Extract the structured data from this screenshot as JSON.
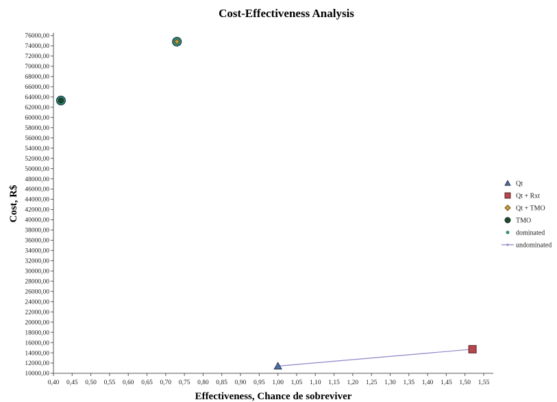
{
  "chart_data": {
    "type": "scatter",
    "title": "Cost-Effectiveness Analysis",
    "xlabel": "Effectiveness, Chance de sobreviver",
    "ylabel": "Cost, R$",
    "xlim": [
      0.4,
      1.55
    ],
    "ylim": [
      10000,
      76000
    ],
    "x_ticks": [
      "0,40",
      "0,45",
      "0,50",
      "0,55",
      "0,60",
      "0,65",
      "0,70",
      "0,75",
      "0,80",
      "0,85",
      "0,90",
      "0,95",
      "1,00",
      "1,05",
      "1,10",
      "1,15",
      "1,20",
      "1,25",
      "1,30",
      "1,35",
      "1,40",
      "1,45",
      "1,50",
      "1,55"
    ],
    "y_ticks": [
      "10000,00",
      "12000,00",
      "14000,00",
      "16000,00",
      "18000,00",
      "20000,00",
      "22000,00",
      "24000,00",
      "26000,00",
      "28000,00",
      "30000,00",
      "32000,00",
      "34000,00",
      "36000,00",
      "38000,00",
      "40000,00",
      "42000,00",
      "44000,00",
      "46000,00",
      "48000,00",
      "50000,00",
      "52000,00",
      "54000,00",
      "56000,00",
      "58000,00",
      "60000,00",
      "62000,00",
      "64000,00",
      "66000,00",
      "68000,00",
      "70000,00",
      "72000,00",
      "74000,00",
      "76000,00"
    ],
    "series": [
      {
        "name": "Qt",
        "marker": "triangle",
        "color": "#4a6fa5",
        "points": [
          {
            "x": 1.0,
            "y": 11400
          }
        ]
      },
      {
        "name": "Qt + Rxt",
        "marker": "square",
        "color": "#b5484f",
        "points": [
          {
            "x": 1.52,
            "y": 14700
          }
        ]
      },
      {
        "name": "Qt + TMO",
        "marker": "diamond",
        "color": "#c8a040",
        "points": [
          {
            "x": 0.73,
            "y": 74800
          }
        ]
      },
      {
        "name": "TMO",
        "marker": "circle",
        "color": "#1e4a30",
        "points": [
          {
            "x": 0.42,
            "y": 63300
          }
        ]
      },
      {
        "name": "dominated",
        "marker": "dot",
        "color": "#2e8b7a",
        "points": [
          {
            "x": 0.73,
            "y": 74800
          },
          {
            "x": 0.42,
            "y": 63300
          }
        ]
      },
      {
        "name": "undominated",
        "marker": "line",
        "color": "#8a86c8",
        "points": [
          {
            "x": 1.0,
            "y": 11400
          },
          {
            "x": 1.52,
            "y": 14700
          }
        ]
      }
    ],
    "legend_position": "right",
    "grid": false
  }
}
